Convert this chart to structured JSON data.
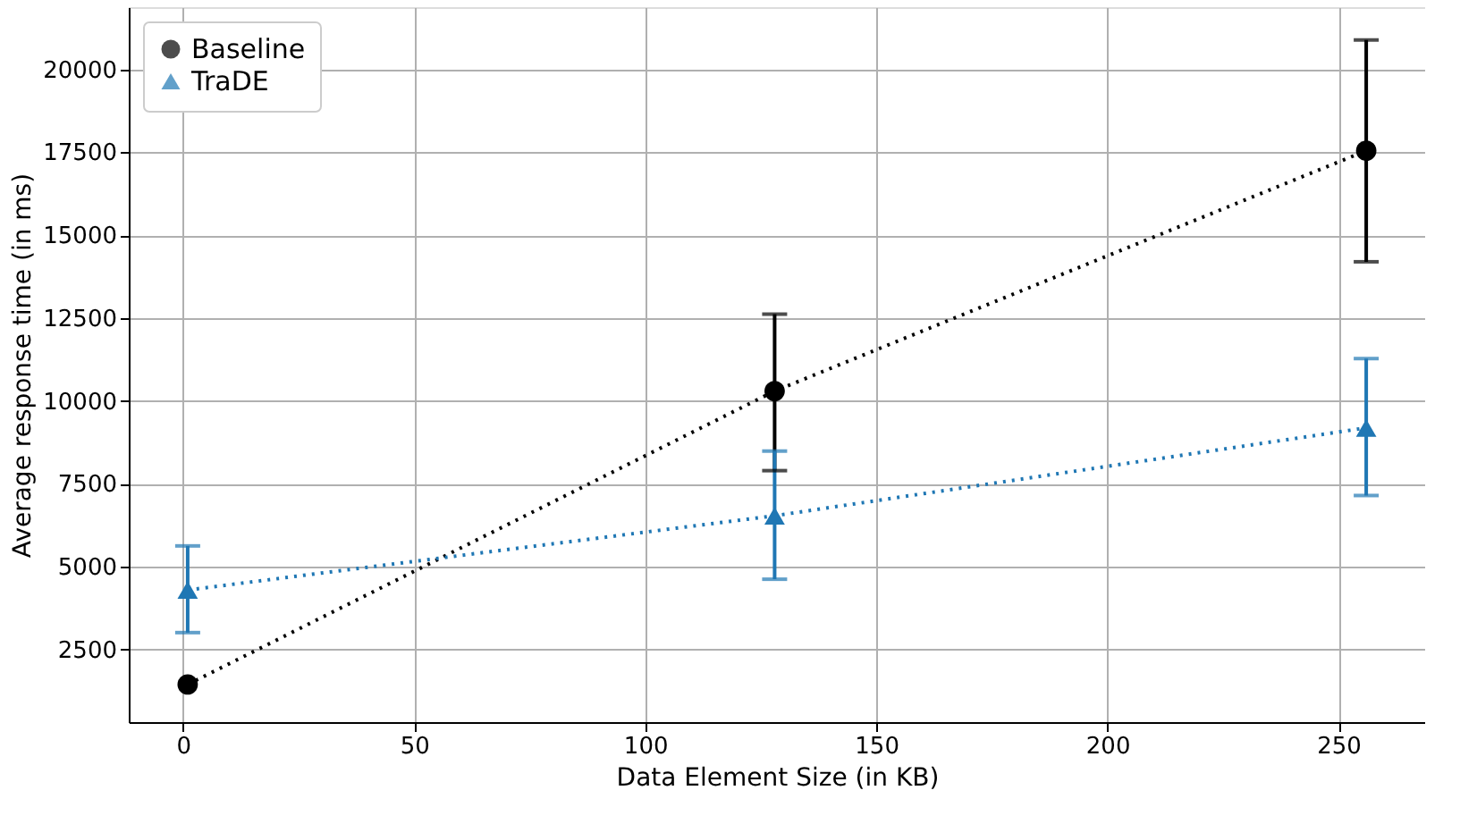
{
  "chart_data": {
    "type": "line",
    "xlabel": "Data Element Size (in KB)",
    "ylabel": "Average response time (in ms)",
    "x": [
      1,
      128,
      256
    ],
    "series": [
      {
        "name": "Baseline",
        "color": "#000000",
        "marker": "circle",
        "values": [
          1450,
          10300,
          17550
        ],
        "errors": [
          null,
          [
            7900,
            12620
          ],
          [
            14200,
            20890
          ]
        ]
      },
      {
        "name": "TraDE",
        "color": "#1f77b4",
        "marker": "triangle",
        "values": [
          4300,
          6540,
          9190
        ],
        "errors": [
          [
            3015,
            5630
          ],
          [
            4625,
            8490
          ],
          [
            7150,
            11280
          ]
        ]
      }
    ],
    "xlim": [
      -11.75,
      268.75
    ],
    "xticks": [
      0,
      50,
      100,
      150,
      200,
      250
    ],
    "ylim": [
      315,
      21880
    ],
    "yticks": [
      2500,
      5000,
      7500,
      10000,
      12500,
      15000,
      17500,
      20000
    ],
    "grid": true,
    "legend": "top left",
    "line_style": "dotted"
  }
}
